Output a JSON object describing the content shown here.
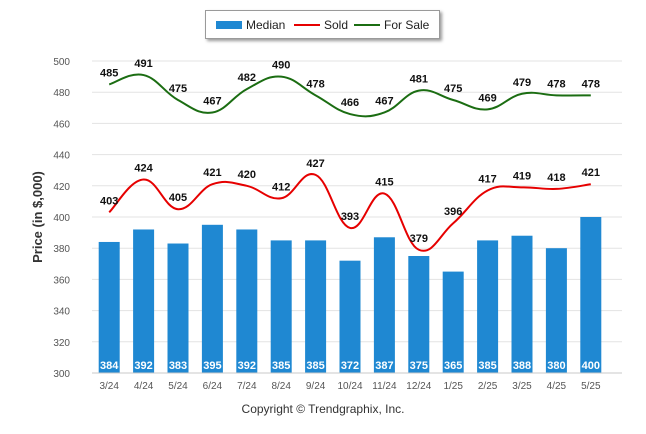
{
  "chart_data": {
    "type": "bar",
    "categories": [
      "3/24",
      "4/24",
      "5/24",
      "6/24",
      "7/24",
      "8/24",
      "9/24",
      "10/24",
      "11/24",
      "12/24",
      "1/25",
      "2/25",
      "3/25",
      "4/25",
      "5/25"
    ],
    "series": [
      {
        "name": "Median",
        "type": "bar",
        "color": "#1f88d2",
        "values": [
          384,
          392,
          383,
          395,
          392,
          385,
          385,
          372,
          387,
          375,
          365,
          385,
          388,
          380,
          400
        ]
      },
      {
        "name": "Sold",
        "type": "line",
        "color": "#e60000",
        "values": [
          403,
          424,
          405,
          421,
          420,
          412,
          427,
          393,
          415,
          379,
          396,
          417,
          419,
          418,
          421
        ]
      },
      {
        "name": "For Sale",
        "type": "line",
        "color": "#1b6d12",
        "values": [
          485,
          491,
          475,
          467,
          482,
          490,
          478,
          466,
          467,
          481,
          475,
          469,
          479,
          478,
          478
        ]
      }
    ],
    "ylabel": "Price (in $,000)",
    "xlabel": "",
    "title": "",
    "ylim": [
      300,
      500
    ],
    "yticks": [
      300,
      320,
      340,
      360,
      380,
      400,
      420,
      440,
      460,
      480,
      500
    ],
    "grid": true,
    "legend_position": "top-center",
    "axis_break_between": [
      440,
      460
    ]
  },
  "legend": {
    "median_label": "Median",
    "sold_label": "Sold",
    "forsale_label": "For Sale"
  },
  "footer": {
    "copyright": "Copyright © Trendgraphix, Inc."
  }
}
